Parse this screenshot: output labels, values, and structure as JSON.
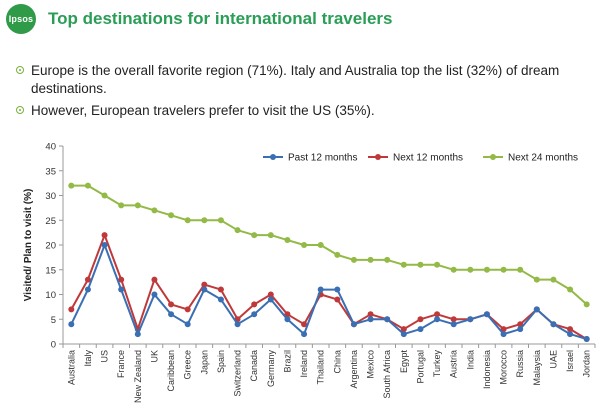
{
  "header": {
    "logo_text": "Ipsos",
    "title": "Top destinations for international travelers"
  },
  "bullets": [
    "Europe is the overall favorite region (71%). Italy and Australia top the list (32%) of dream destinations.",
    "However, European travelers prefer to visit the US (35%)."
  ],
  "chart_data": {
    "type": "line",
    "ylabel": "Visited/ Plan to visit (%)",
    "ylim": [
      0,
      40
    ],
    "yticks": [
      0,
      5,
      10,
      15,
      20,
      25,
      30,
      35,
      40
    ],
    "legend_position": "top-right",
    "grid": false,
    "categories": [
      "Australia",
      "Italy",
      "US",
      "France",
      "New Zealand",
      "UK",
      "Caribbean",
      "Greece",
      "Japan",
      "Spain",
      "Switzerland",
      "Canada",
      "Germany",
      "Brazil",
      "Ireland",
      "Thailand",
      "China",
      "Argentina",
      "Mexico",
      "South Africa",
      "Egypt",
      "Portugal",
      "Turkey",
      "Austria",
      "India",
      "Indonesia",
      "Morocco",
      "Russia",
      "Malaysia",
      "UAE",
      "Israel",
      "Jordan"
    ],
    "series": [
      {
        "name": "Past 12 months",
        "color": "#3a6fb4",
        "values": [
          4,
          11,
          20,
          11,
          2,
          10,
          6,
          4,
          11,
          9,
          4,
          6,
          9,
          5,
          2,
          11,
          11,
          4,
          5,
          5,
          2,
          3,
          5,
          4,
          5,
          6,
          2,
          3,
          7,
          4,
          2,
          1
        ]
      },
      {
        "name": "Next 12 months",
        "color": "#c0393a",
        "values": [
          7,
          13,
          22,
          13,
          3,
          13,
          8,
          7,
          12,
          11,
          5,
          8,
          10,
          6,
          4,
          10,
          9,
          4,
          6,
          5,
          3,
          5,
          6,
          5,
          5,
          6,
          3,
          4,
          7,
          4,
          3,
          1
        ]
      },
      {
        "name": "Next 24 months",
        "color": "#93b946",
        "values": [
          32,
          32,
          30,
          28,
          28,
          27,
          26,
          25,
          25,
          25,
          23,
          22,
          22,
          21,
          20,
          20,
          18,
          17,
          17,
          17,
          16,
          16,
          16,
          15,
          15,
          15,
          15,
          15,
          13,
          13,
          11,
          8
        ]
      }
    ]
  }
}
